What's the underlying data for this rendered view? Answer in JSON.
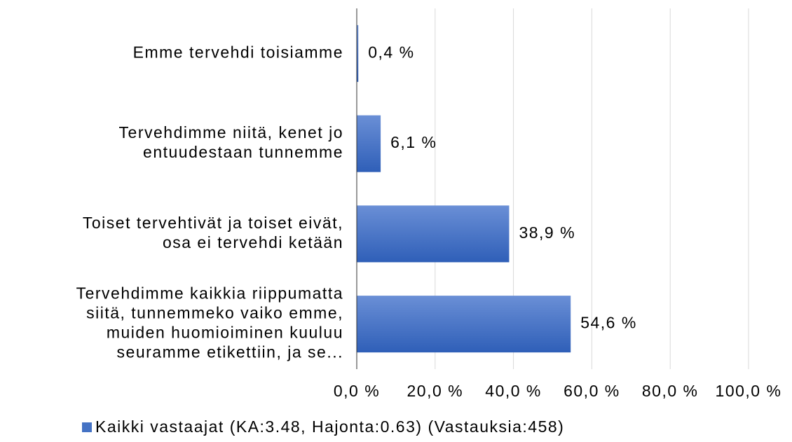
{
  "chart_data": {
    "type": "bar",
    "orientation": "horizontal",
    "categories": [
      "Emme tervehdi toisiamme",
      "Tervehdimme niitä, kenet jo\nentuudestaan tunnemme",
      "Toiset tervehtivät ja toiset eivät,\nosa ei tervehdi ketään",
      "Tervehdimme kaikkia riippumatta\nsiitä, tunnemmeko vaiko emme,\nmuiden huomioiminen kuuluu\nseuramme etikettiin, ja se..."
    ],
    "series": [
      {
        "name": "Kaikki vastaajat (KA:3.48, Hajonta:0.63) (Vastauksia:458)",
        "color": "#4472c4",
        "values": [
          0.4,
          6.1,
          38.9,
          54.6
        ],
        "value_labels": [
          "0,4 %",
          "6,1 %",
          "38,9 %",
          "54,6 %"
        ]
      }
    ],
    "xlim": [
      0,
      100
    ],
    "xticks": [
      {
        "value": 0,
        "label": "0,0 %"
      },
      {
        "value": 20,
        "label": "20,0 %"
      },
      {
        "value": 40,
        "label": "40,0 %"
      },
      {
        "value": 60,
        "label": "60,0 %"
      },
      {
        "value": 80,
        "label": "80,0 %"
      },
      {
        "value": 100,
        "label": "100,0 %"
      }
    ],
    "grid": true,
    "legend": "bottom"
  }
}
